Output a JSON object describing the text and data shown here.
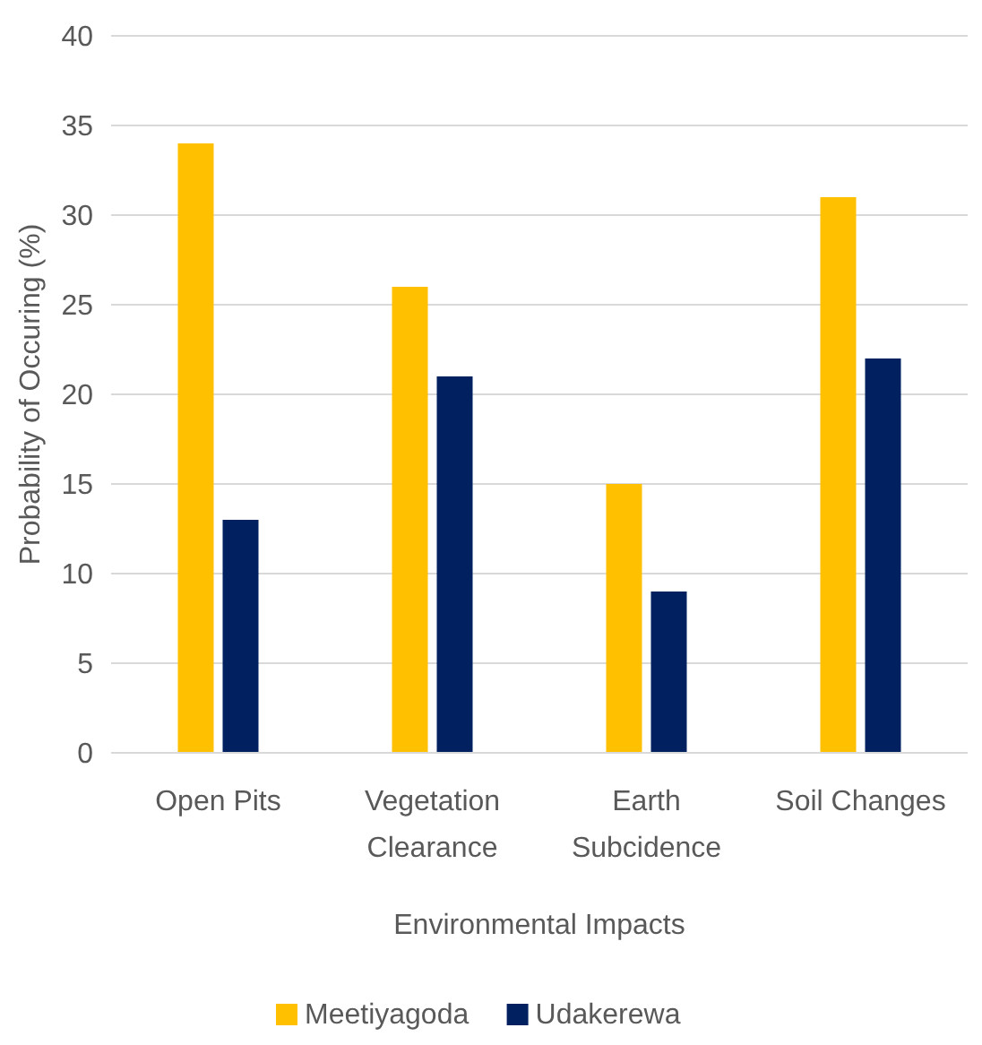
{
  "chart_data": {
    "type": "bar",
    "xlabel": "Environmental Impacts",
    "ylabel": "Probability of Occuring (%)",
    "categories": [
      "Open Pits",
      "Vegetation Clearance",
      "Earth Subcidence",
      "Soil Changes"
    ],
    "series": [
      {
        "name": "Meetiyagoda",
        "color": "#ffc000",
        "values": [
          34,
          26,
          15,
          31
        ]
      },
      {
        "name": "Udakerewa",
        "color": "#002060",
        "values": [
          13,
          21,
          9,
          22
        ]
      }
    ],
    "ylim": [
      0,
      40
    ],
    "yticks": [
      0,
      5,
      10,
      15,
      20,
      25,
      30,
      35,
      40
    ],
    "grid": "y",
    "legend": "bottom"
  }
}
